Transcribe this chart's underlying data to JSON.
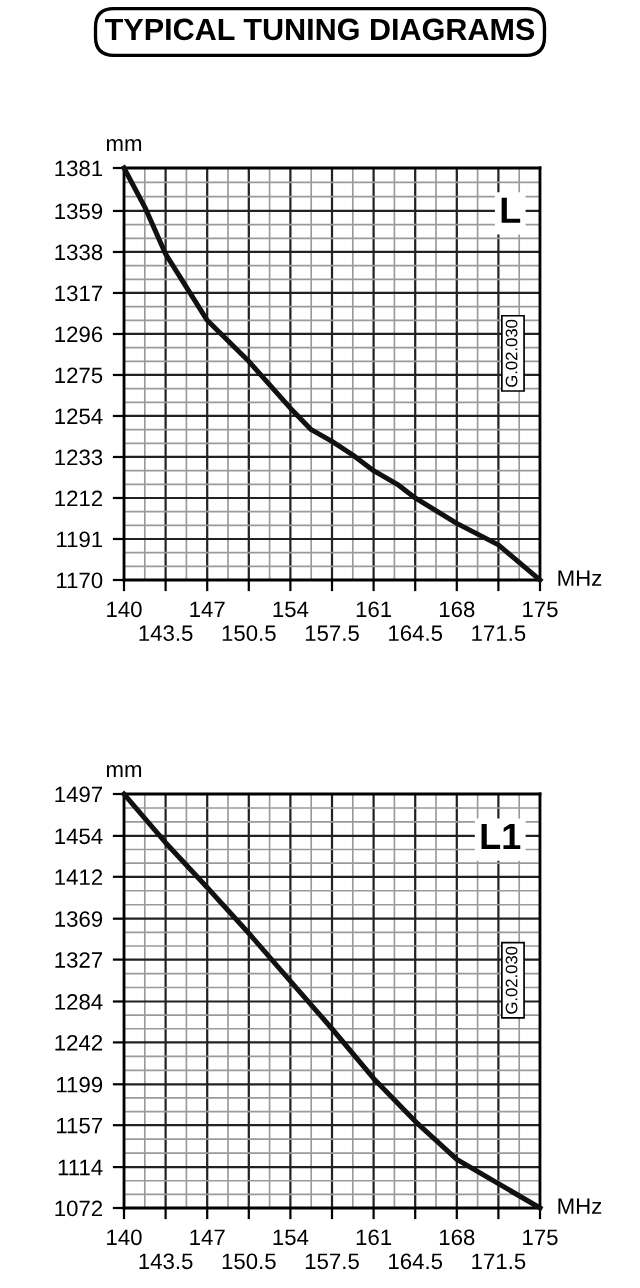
{
  "chart_data": [
    {
      "type": "line",
      "title": "TYPICAL TUNING DIAGRAMS",
      "ylabel": "mm",
      "xlabel": "MHz",
      "annotations": [
        "L",
        "G.02.030"
      ],
      "series": [
        {
          "color": "#111111",
          "x": [
            140,
            141.75,
            143.5,
            147,
            150.5,
            154,
            155.75,
            157.5,
            159.25,
            161,
            163,
            164.5,
            168,
            171.5,
            175
          ],
          "values": [
            1381,
            1361,
            1337,
            1303,
            1282,
            1258,
            1247,
            1241,
            1234,
            1226,
            1219,
            1212,
            1199,
            1188,
            1170
          ]
        }
      ],
      "xlim": [
        140,
        175
      ],
      "xticks": [
        140,
        {
          "value": 143.5,
          "label": null
        },
        147,
        {
          "value": 150.5,
          "label": null
        },
        154,
        {
          "value": 157.5,
          "label": null
        },
        161,
        {
          "value": 164.5,
          "label": null
        },
        168,
        {
          "value": 171.5,
          "label": null
        },
        175
      ],
      "x2lim": [
        140,
        175
      ],
      "x2ticks": [
        143.5,
        150.5,
        157.5,
        164.5,
        171.5
      ],
      "ylim": [
        1170,
        1381
      ],
      "yticks": [
        1170,
        1191,
        1212,
        1233,
        1254,
        1275,
        1296,
        1317,
        1338,
        1359,
        1381
      ],
      "grid": true,
      "legend": false,
      "marker": "none",
      "line_style": "solid"
    },
    {
      "type": "line",
      "ylabel": "mm",
      "xlabel": "MHz",
      "annotations": [
        "L1",
        "G.02.030"
      ],
      "series": [
        {
          "color": "#111111",
          "x": [
            140,
            143.5,
            147,
            150.5,
            154,
            157.5,
            161,
            164.5,
            168,
            171.5,
            175
          ],
          "values": [
            1497,
            1447,
            1401,
            1354,
            1305,
            1256,
            1205,
            1161,
            1122,
            1097,
            1072
          ]
        }
      ],
      "xlim": [
        140,
        175
      ],
      "xticks": [
        140,
        {
          "value": 143.5,
          "label": null
        },
        147,
        {
          "value": 150.5,
          "label": null
        },
        154,
        {
          "value": 157.5,
          "label": null
        },
        161,
        {
          "value": 164.5,
          "label": null
        },
        168,
        {
          "value": 171.5,
          "label": null
        },
        175
      ],
      "x2lim": [
        140,
        175
      ],
      "x2ticks": [
        143.5,
        150.5,
        157.5,
        164.5,
        171.5
      ],
      "ylim": [
        1072,
        1497
      ],
      "yticks": [
        1072,
        1114,
        1157,
        1199,
        1242,
        1284,
        1327,
        1369,
        1412,
        1454,
        1497
      ],
      "grid": true,
      "legend": false,
      "marker": "none",
      "line_style": "solid"
    }
  ]
}
